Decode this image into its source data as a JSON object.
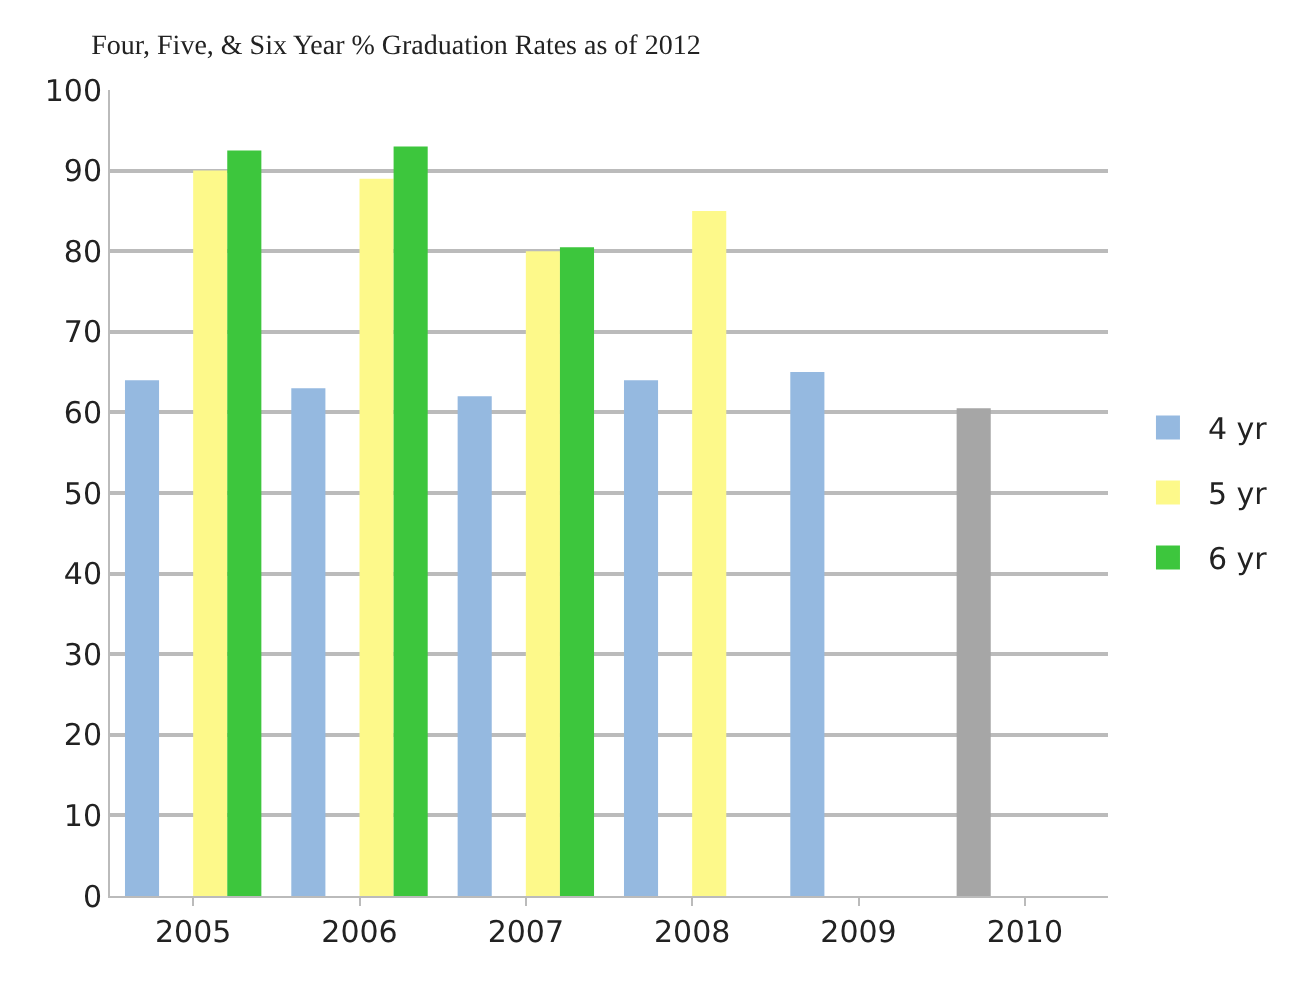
{
  "chart_data": {
    "type": "bar",
    "title": "Four, Five, & Six Year % Graduation Rates as of 2012",
    "categories": [
      "2005",
      "2006",
      "2007",
      "2008",
      "2009",
      "2010"
    ],
    "series": [
      {
        "name": "4 yr",
        "color": "#95b9e0",
        "colors": [
          "#95b9e0",
          "#95b9e0",
          "#95b9e0",
          "#95b9e0",
          "#95b9e0",
          "#a6a6a6"
        ],
        "values": [
          64,
          63,
          62,
          64,
          65,
          60.5
        ]
      },
      {
        "name": "5 yr",
        "color": "#fdf98a",
        "values": [
          90,
          89,
          80,
          85,
          null,
          null
        ]
      },
      {
        "name": "6 yr",
        "color": "#3dc63d",
        "values": [
          92.5,
          93,
          80.5,
          null,
          null,
          null
        ]
      }
    ],
    "ylim": [
      0,
      100
    ],
    "yticks": [
      0,
      10,
      20,
      30,
      40,
      50,
      60,
      70,
      80,
      90,
      100
    ],
    "grid": "y",
    "legend": "right"
  }
}
